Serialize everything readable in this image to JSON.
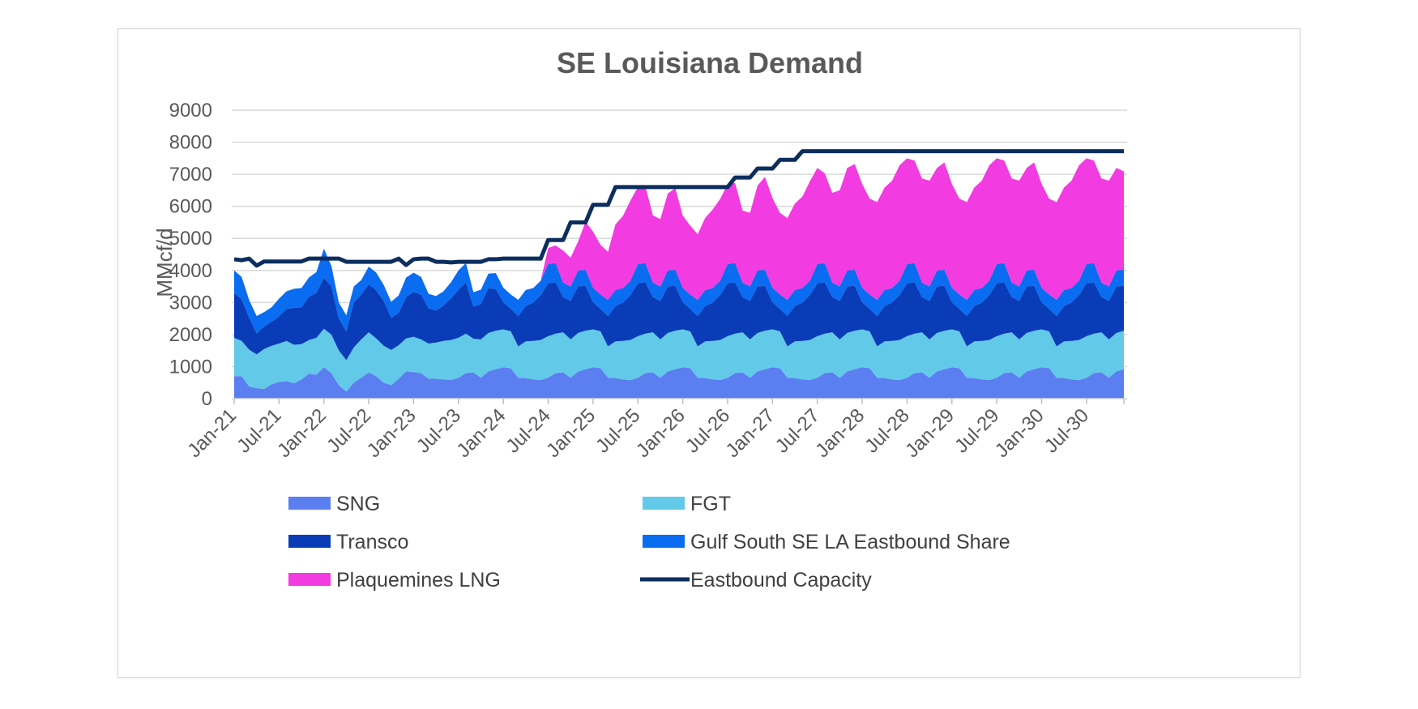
{
  "chart_data": {
    "type": "area",
    "title": "SE Louisiana Demand",
    "xlabel": "",
    "ylabel": "MMcf/d",
    "ylim": [
      0,
      9000
    ],
    "yticks": [
      0,
      1000,
      2000,
      3000,
      4000,
      5000,
      6000,
      7000,
      8000,
      9000
    ],
    "x_start": "Jan-21",
    "x_tick_labels": [
      "Jan-21",
      "Jul-21",
      "Jan-22",
      "Jul-22",
      "Jan-23",
      "Jul-23",
      "Jan-24",
      "Jul-24",
      "Jan-25",
      "Jul-25",
      "Jan-26",
      "Jul-26",
      "Jan-27",
      "Jul-27",
      "Jan-28",
      "Jul-28",
      "Jan-29",
      "Jul-29",
      "Jan-30",
      "Jul-30"
    ],
    "grid": true,
    "legend_position": "bottom",
    "series": [
      {
        "name": "SNG",
        "kind": "stacked-area",
        "color": "#5b7ff0",
        "values": [
          700,
          700,
          380,
          330,
          300,
          450,
          520,
          550,
          480,
          600,
          780,
          750,
          980,
          800,
          420,
          220,
          500,
          650,
          820,
          700,
          500,
          420,
          620,
          850,
          830,
          800,
          620,
          620,
          600,
          580,
          650,
          800,
          820,
          650,
          850,
          920,
          980,
          950,
          650,
          640,
          600,
          580,
          650,
          800,
          820,
          650,
          850,
          920,
          980,
          950,
          650,
          640,
          600,
          580,
          650,
          800,
          820,
          650,
          850,
          920,
          980,
          950,
          650,
          640,
          600,
          580,
          650,
          800,
          820,
          650,
          850,
          920,
          980,
          950,
          650,
          640,
          600,
          580,
          650,
          800,
          820,
          650,
          850,
          920,
          980,
          950,
          650,
          640,
          600,
          580,
          650,
          800,
          820,
          650,
          850,
          920,
          980,
          950,
          650,
          640,
          600,
          580,
          650,
          800,
          820,
          650,
          850,
          920,
          980,
          950,
          650,
          640,
          600,
          580,
          650,
          800,
          820,
          650,
          850,
          920
        ]
      },
      {
        "name": "FGT",
        "kind": "stacked-area",
        "color": "#62c9e8",
        "values": [
          1200,
          1100,
          1150,
          1050,
          1250,
          1200,
          1200,
          1250,
          1200,
          1100,
          1050,
          1150,
          1200,
          1200,
          1080,
          980,
          1100,
          1200,
          1250,
          1180,
          1150,
          1100,
          1050,
          1030,
          1100,
          1050,
          1100,
          1130,
          1200,
          1250,
          1250,
          1230,
          1050,
          1200,
          1200,
          1200,
          1180,
          1150,
          980,
          1150,
          1200,
          1250,
          1300,
          1230,
          1250,
          1200,
          1200,
          1200,
          1180,
          1150,
          980,
          1150,
          1200,
          1250,
          1300,
          1230,
          1250,
          1200,
          1200,
          1200,
          1180,
          1150,
          980,
          1150,
          1200,
          1250,
          1300,
          1230,
          1250,
          1200,
          1200,
          1200,
          1180,
          1150,
          980,
          1150,
          1200,
          1250,
          1300,
          1230,
          1250,
          1200,
          1200,
          1200,
          1180,
          1150,
          980,
          1150,
          1200,
          1250,
          1300,
          1230,
          1250,
          1200,
          1200,
          1200,
          1180,
          1150,
          980,
          1150,
          1200,
          1250,
          1300,
          1230,
          1250,
          1200,
          1200,
          1200,
          1180,
          1150,
          980,
          1150,
          1200,
          1250,
          1300,
          1230,
          1250,
          1200,
          1200,
          1200
        ]
      },
      {
        "name": "Transco",
        "kind": "stacked-area",
        "color": "#0a3cb8",
        "values": [
          1400,
          1300,
          1000,
          650,
          700,
          750,
          850,
          1000,
          1150,
          1150,
          1350,
          1400,
          1600,
          1500,
          1000,
          900,
          1400,
          1400,
          1500,
          1500,
          1400,
          1000,
          1000,
          1300,
          1400,
          1400,
          1100,
          1000,
          1100,
          1300,
          1500,
          1600,
          1000,
          1100,
          1400,
          1300,
          850,
          700,
          950,
          1100,
          1200,
          1400,
          1650,
          1600,
          1100,
          1200,
          1450,
          1400,
          850,
          700,
          950,
          1100,
          1200,
          1400,
          1650,
          1600,
          1100,
          1200,
          1450,
          1400,
          850,
          700,
          950,
          1100,
          1200,
          1400,
          1650,
          1600,
          1100,
          1200,
          1450,
          1400,
          850,
          700,
          950,
          1100,
          1200,
          1400,
          1650,
          1600,
          1100,
          1200,
          1450,
          1400,
          850,
          700,
          950,
          1100,
          1200,
          1400,
          1650,
          1600,
          1100,
          1200,
          1450,
          1400,
          850,
          700,
          950,
          1100,
          1200,
          1400,
          1650,
          1600,
          1100,
          1200,
          1450,
          1400,
          850,
          700,
          950,
          1100,
          1200,
          1400,
          1650,
          1600,
          1100,
          1200,
          1450,
          1400
        ]
      },
      {
        "name": "Gulf South SE LA Eastbound Share",
        "kind": "stacked-area",
        "color": "#0a6cf0",
        "values": [
          700,
          700,
          550,
          550,
          450,
          450,
          550,
          550,
          600,
          600,
          600,
          650,
          900,
          650,
          500,
          500,
          500,
          450,
          550,
          550,
          500,
          500,
          550,
          600,
          600,
          550,
          450,
          450,
          450,
          500,
          600,
          600,
          450,
          450,
          450,
          500,
          450,
          450,
          500,
          500,
          450,
          450,
          600,
          600,
          450,
          450,
          500,
          500,
          450,
          450,
          500,
          500,
          450,
          450,
          600,
          600,
          450,
          450,
          500,
          500,
          450,
          450,
          500,
          500,
          450,
          450,
          600,
          600,
          450,
          450,
          500,
          500,
          450,
          450,
          500,
          500,
          450,
          450,
          600,
          600,
          450,
          450,
          500,
          500,
          450,
          450,
          500,
          500,
          450,
          450,
          600,
          600,
          450,
          450,
          500,
          500,
          450,
          450,
          500,
          500,
          450,
          450,
          600,
          600,
          450,
          450,
          500,
          500,
          450,
          450,
          500,
          500,
          450,
          450,
          600,
          600,
          450,
          450,
          500,
          500
        ]
      },
      {
        "name": "Plaquemines LNG",
        "kind": "stacked-area",
        "color": "#f23be0",
        "values": [
          0,
          0,
          0,
          0,
          0,
          0,
          0,
          0,
          0,
          0,
          0,
          0,
          0,
          0,
          0,
          0,
          0,
          0,
          0,
          0,
          0,
          0,
          0,
          0,
          0,
          0,
          0,
          0,
          0,
          0,
          0,
          0,
          0,
          0,
          0,
          0,
          0,
          0,
          0,
          0,
          0,
          0,
          500,
          550,
          1000,
          900,
          900,
          1500,
          1750,
          1550,
          1500,
          2050,
          2250,
          2500,
          2400,
          2400,
          2100,
          2100,
          2400,
          2550,
          2250,
          2150,
          2050,
          2250,
          2450,
          2550,
          2500,
          2500,
          2250,
          2300,
          2650,
          2900,
          2800,
          2550,
          2550,
          2700,
          2850,
          3100,
          3000,
          2800,
          2800,
          3000,
          3200,
          3300,
          3240,
          2990,
          3050,
          3200,
          3350,
          3600,
          3300,
          3200,
          3250,
          3300,
          3200,
          3350,
          3240,
          2990,
          3050,
          3200,
          3350,
          3600,
          3300,
          3200,
          3250,
          3300,
          3200,
          3350,
          3240,
          2990,
          3050,
          3200,
          3350,
          3600,
          3300,
          3200,
          3250,
          3300,
          3200,
          3070
        ]
      },
      {
        "name": "Eastbound Capacity",
        "kind": "line",
        "color": "#0b2e5e",
        "values": [
          4350,
          4320,
          4370,
          4150,
          4280,
          4280,
          4280,
          4280,
          4280,
          4280,
          4370,
          4370,
          4370,
          4370,
          4370,
          4270,
          4270,
          4270,
          4270,
          4270,
          4270,
          4270,
          4370,
          4170,
          4350,
          4370,
          4370,
          4270,
          4270,
          4250,
          4270,
          4270,
          4270,
          4270,
          4350,
          4350,
          4370,
          4370,
          4370,
          4370,
          4370,
          4370,
          4950,
          4950,
          4950,
          5500,
          5500,
          5500,
          6050,
          6050,
          6050,
          6600,
          6600,
          6600,
          6600,
          6600,
          6600,
          6600,
          6600,
          6600,
          6600,
          6600,
          6600,
          6600,
          6600,
          6600,
          6600,
          6900,
          6900,
          6900,
          7180,
          7180,
          7180,
          7450,
          7450,
          7450,
          7720,
          7720,
          7720,
          7720,
          7720,
          7720,
          7720,
          7720,
          7720,
          7720,
          7720,
          7720,
          7720,
          7720,
          7720,
          7720,
          7720,
          7720,
          7720,
          7720,
          7720,
          7720,
          7720,
          7720,
          7720,
          7720,
          7720,
          7720,
          7720,
          7720,
          7720,
          7720,
          7720,
          7720,
          7720,
          7720,
          7720,
          7720,
          7720,
          7720,
          7720,
          7720,
          7720,
          7720
        ]
      }
    ]
  }
}
